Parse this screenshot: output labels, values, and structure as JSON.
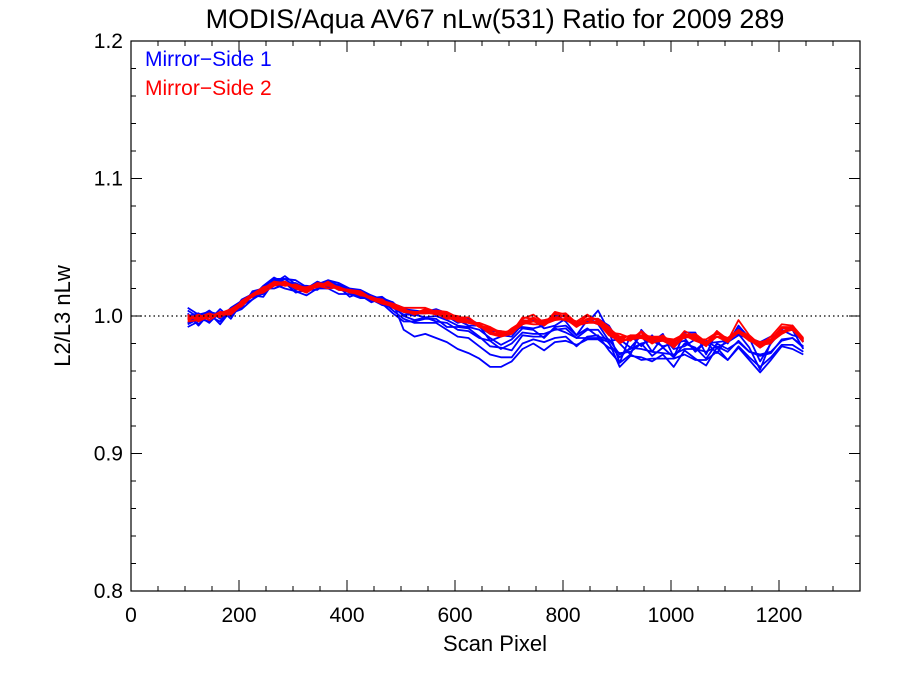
{
  "chart_data": {
    "type": "line",
    "title": "MODIS/Aqua AV67 nLw(531) Ratio for 2009 289",
    "xlabel": "Scan Pixel",
    "ylabel": "L2/L3 nLw",
    "xlim": [
      0,
      1350
    ],
    "ylim": [
      0.8,
      1.2
    ],
    "xticks": [
      0,
      200,
      400,
      600,
      800,
      1000,
      1200
    ],
    "xtick_labels": [
      "0",
      "200",
      "400",
      "600",
      "800",
      "1000",
      "1200"
    ],
    "x_minor_step": 50,
    "yticks": [
      0.8,
      0.9,
      1.0,
      1.1,
      1.2
    ],
    "ytick_labels": [
      "0.8",
      "0.9",
      "1.0",
      "1.1",
      "1.2"
    ],
    "y_minor_step": 0.02,
    "reference_line": 1.0,
    "legend_position": "top-left",
    "legend": [
      {
        "label": "Mirror−Side 1",
        "color": "#0000ff"
      },
      {
        "label": "Mirror−Side 2",
        "color": "#ff0000"
      }
    ],
    "x": [
      105,
      125,
      145,
      165,
      185,
      205,
      225,
      245,
      265,
      285,
      305,
      325,
      345,
      365,
      385,
      405,
      425,
      445,
      465,
      485,
      505,
      525,
      545,
      565,
      585,
      605,
      625,
      645,
      665,
      685,
      705,
      725,
      745,
      765,
      785,
      805,
      825,
      845,
      865,
      885,
      905,
      925,
      945,
      965,
      985,
      1005,
      1025,
      1045,
      1065,
      1085,
      1105,
      1125,
      1145,
      1165,
      1185,
      1205,
      1225,
      1245
    ],
    "base": [
      0.998,
      0.998,
      0.999,
      1.0,
      1.002,
      1.008,
      1.014,
      1.018,
      1.022,
      1.023,
      1.02,
      1.018,
      1.021,
      1.022,
      1.019,
      1.017,
      1.015,
      1.012,
      1.01,
      1.006,
      1.002,
      1.0,
      1.001,
      1.0,
      0.998,
      0.995,
      0.993,
      0.99,
      0.986,
      0.983,
      0.985,
      0.992,
      0.993,
      0.99,
      0.995,
      0.995,
      0.99,
      0.993,
      0.992,
      0.985,
      0.978,
      0.98,
      0.982,
      0.978,
      0.98,
      0.975,
      0.982,
      0.98,
      0.976,
      0.983,
      0.978,
      0.985,
      0.98,
      0.975,
      0.978,
      0.985,
      0.988,
      0.98
    ],
    "series": [
      {
        "group": 1,
        "color": "#0000ff",
        "offsets": [
          0.004,
          -0.005,
          0.003,
          -0.006,
          0.002,
          0.001,
          0.003,
          0.0,
          0.004,
          0.002,
          -0.001,
          0.002,
          0.001,
          0.003,
          0.001,
          0.0,
          -0.001,
          0.002,
          0.001,
          -0.002,
          -0.004,
          -0.005,
          -0.006,
          -0.005,
          -0.008,
          -0.01,
          -0.009,
          -0.012,
          -0.014,
          -0.013,
          -0.015,
          -0.012,
          -0.01,
          -0.009,
          -0.011,
          -0.01,
          -0.012,
          -0.008,
          -0.006,
          -0.01,
          -0.012,
          -0.008,
          -0.014,
          -0.009,
          -0.011,
          -0.006,
          -0.01,
          -0.012,
          -0.008,
          -0.009,
          -0.01,
          -0.007,
          -0.01,
          -0.012,
          -0.008,
          -0.006,
          -0.009,
          -0.006
        ]
      },
      {
        "group": 1,
        "color": "#0000ff",
        "offsets": [
          -0.003,
          0.002,
          -0.004,
          0.003,
          -0.002,
          0.0,
          -0.002,
          0.003,
          0.005,
          0.004,
          0.001,
          -0.001,
          0.002,
          0.001,
          0.0,
          0.002,
          0.001,
          -0.001,
          0.002,
          0.001,
          -0.002,
          -0.003,
          -0.002,
          -0.004,
          -0.003,
          -0.005,
          -0.004,
          -0.006,
          -0.004,
          -0.007,
          -0.005,
          -0.004,
          -0.006,
          -0.003,
          -0.005,
          -0.004,
          -0.006,
          -0.003,
          -0.002,
          -0.005,
          -0.008,
          -0.003,
          -0.006,
          -0.004,
          -0.007,
          -0.003,
          -0.006,
          -0.004,
          -0.002,
          -0.005,
          -0.004,
          -0.003,
          -0.006,
          -0.004,
          -0.005,
          -0.002,
          -0.004,
          -0.003
        ]
      },
      {
        "group": 1,
        "color": "#0000ff",
        "offsets": [
          0.006,
          0.001,
          0.005,
          -0.002,
          0.004,
          0.003,
          0.001,
          -0.002,
          0.002,
          0.006,
          0.003,
          0.001,
          -0.002,
          0.004,
          0.003,
          0.001,
          0.003,
          0.0,
          -0.002,
          0.003,
          0.004,
          0.002,
          0.001,
          0.003,
          0.002,
          0.0,
          0.004,
          0.002,
          0.001,
          0.003,
          0.0,
          0.002,
          0.004,
          0.001,
          -0.002,
          0.003,
          0.005,
          0.002,
          0.012,
          0.004,
          -0.012,
          0.006,
          -0.004,
          0.008,
          -0.003,
          0.007,
          0.002,
          -0.006,
          0.005,
          -0.01,
          0.006,
          0.002,
          -0.003,
          -0.014,
          0.003,
          0.005,
          -0.002,
          0.004
        ]
      },
      {
        "group": 1,
        "color": "#0000ff",
        "offsets": [
          -0.006,
          -0.002,
          0.001,
          -0.004,
          0.003,
          -0.002,
          0.004,
          0.002,
          -0.002,
          0.0,
          0.002,
          0.004,
          0.0,
          -0.002,
          0.002,
          -0.003,
          0.002,
          0.003,
          -0.001,
          -0.004,
          -0.006,
          -0.004,
          -0.003,
          -0.002,
          -0.006,
          -0.003,
          -0.002,
          -0.005,
          -0.008,
          -0.006,
          -0.01,
          -0.006,
          -0.008,
          -0.005,
          -0.004,
          -0.007,
          -0.006,
          -0.009,
          -0.008,
          -0.004,
          -0.015,
          -0.009,
          -0.012,
          -0.011,
          -0.008,
          -0.012,
          -0.007,
          -0.011,
          -0.012,
          -0.006,
          -0.01,
          -0.008,
          -0.012,
          -0.016,
          -0.01,
          -0.007,
          -0.012,
          -0.008
        ]
      },
      {
        "group": 1,
        "color": "#0000ff",
        "offsets": [
          0.002,
          0.004,
          -0.002,
          0.005,
          -0.004,
          0.002,
          0.0,
          0.004,
          0.006,
          0.001,
          0.004,
          0.002,
          0.004,
          0.0,
          0.004,
          0.002,
          0.0,
          -0.002,
          0.003,
          0.004,
          0.001,
          0.0,
          0.003,
          0.001,
          0.003,
          0.002,
          0.0,
          0.003,
          -0.004,
          0.002,
          0.004,
          0.0,
          -0.002,
          0.003,
          0.006,
          0.001,
          -0.004,
          0.004,
          0.002,
          -0.003,
          0.005,
          -0.003,
          0.004,
          -0.004,
          0.005,
          0.001,
          -0.004,
          0.003,
          0.004,
          -0.002,
          0.004,
          0.006,
          0.003,
          0.002,
          0.005,
          0.004,
          0.002,
          0.001
        ]
      },
      {
        "group": 1,
        "color": "#0000ff",
        "offsets": [
          0.001,
          -0.004,
          0.002,
          0.001,
          0.0,
          -0.003,
          -0.002,
          -0.001,
          0.001,
          -0.003,
          -0.002,
          -0.003,
          -0.001,
          -0.002,
          -0.003,
          -0.001,
          -0.002,
          0.001,
          -0.002,
          0.0,
          -0.001,
          0.001,
          -0.002,
          0.0,
          -0.001,
          -0.002,
          -0.001,
          0.0,
          -0.002,
          -0.004,
          -0.002,
          -0.001,
          -0.003,
          -0.006,
          -0.003,
          -0.002,
          -0.004,
          -0.002,
          -0.007,
          -0.002,
          -0.006,
          -0.004,
          -0.002,
          -0.007,
          -0.003,
          -0.005,
          -0.002,
          -0.003,
          -0.007,
          -0.003,
          -0.002,
          -0.004,
          -0.006,
          -0.003,
          -0.004,
          -0.003,
          -0.004,
          -0.002
        ]
      },
      {
        "group": 1,
        "color": "#0000ff",
        "offsets": [
          0.008,
          0.003,
          0.004,
          0.001,
          -0.001,
          0.004,
          0.002,
          0.003,
          0.002,
          0.004,
          0.006,
          0.003,
          0.002,
          0.004,
          0.005,
          0.003,
          0.004,
          0.003,
          0.002,
          0.004,
          -0.012,
          -0.015,
          -0.014,
          -0.016,
          -0.017,
          -0.019,
          -0.02,
          -0.021,
          -0.023,
          -0.02,
          -0.018,
          -0.016,
          -0.013,
          -0.015,
          -0.014,
          -0.013,
          -0.011,
          -0.01,
          -0.009,
          -0.008,
          -0.005,
          -0.006,
          -0.002,
          0.004,
          -0.002,
          0.005,
          0.0,
          -0.005,
          0.006,
          -0.006,
          0.003,
          0.001,
          0.004,
          -0.008,
          0.002,
          0.004,
          0.002,
          -0.004
        ]
      },
      {
        "group": 1,
        "color": "#0000ff",
        "offsets": [
          -0.004,
          0.0,
          -0.003,
          0.002,
          0.001,
          -0.001,
          0.001,
          -0.004,
          0.003,
          0.001,
          -0.003,
          0.001,
          0.003,
          -0.001,
          0.002,
          0.003,
          -0.002,
          0.001,
          0.004,
          0.002,
          0.003,
          0.004,
          0.002,
          0.005,
          0.004,
          0.002,
          0.005,
          0.004,
          0.003,
          0.006,
          0.002,
          0.005,
          0.003,
          0.007,
          0.002,
          0.006,
          0.004,
          0.003,
          0.006,
          0.008,
          0.002,
          -0.008,
          0.008,
          0.003,
          0.007,
          -0.005,
          0.006,
          0.008,
          -0.004,
          0.006,
          0.002,
          0.008,
          0.004,
          0.006,
          0.007,
          0.003,
          0.005,
          0.003
        ]
      },
      {
        "group": 2,
        "color": "#ff0000",
        "offsets": [
          0.002,
          0.001,
          0.003,
          -0.001,
          0.002,
          0.001,
          0.002,
          0.003,
          0.001,
          0.002,
          0.001,
          0.003,
          0.002,
          0.001,
          0.002,
          0.001,
          0.0,
          0.002,
          0.001,
          0.003,
          0.004,
          0.006,
          0.005,
          0.003,
          0.004,
          0.002,
          0.003,
          0.004,
          0.002,
          0.003,
          0.004,
          0.005,
          0.003,
          0.006,
          0.004,
          0.005,
          0.003,
          0.002,
          0.004,
          0.003,
          0.002,
          0.005,
          0.003,
          0.004,
          0.006,
          0.004,
          0.003,
          0.005,
          0.004,
          0.006,
          0.003,
          0.005,
          0.004,
          0.003,
          0.004,
          0.006,
          0.003,
          0.002
        ]
      },
      {
        "group": 2,
        "color": "#ff0000",
        "offsets": [
          -0.002,
          -0.001,
          0.0,
          0.001,
          -0.001,
          0.0,
          0.001,
          -0.001,
          0.0,
          0.001,
          0.0,
          -0.001,
          0.001,
          0.0,
          0.002,
          0.0,
          0.001,
          0.0,
          -0.001,
          0.001,
          0.002,
          0.001,
          0.003,
          0.002,
          0.0,
          0.003,
          0.002,
          0.004,
          0.003,
          0.002,
          0.006,
          0.004,
          0.003,
          0.007,
          0.004,
          0.002,
          0.003,
          0.005,
          0.006,
          0.003,
          0.009,
          0.004,
          0.002,
          0.006,
          0.003,
          0.007,
          0.002,
          0.006,
          0.004,
          0.002,
          0.006,
          0.003,
          0.005,
          0.004,
          0.002,
          0.006,
          0.004,
          0.003
        ]
      },
      {
        "group": 2,
        "color": "#ff0000",
        "offsets": [
          0.0,
          0.003,
          -0.002,
          0.002,
          0.001,
          0.002,
          0.0,
          0.002,
          0.003,
          0.0,
          0.002,
          0.001,
          0.0,
          0.003,
          0.001,
          0.002,
          0.001,
          0.001,
          0.002,
          0.0,
          0.001,
          0.002,
          0.004,
          0.003,
          0.002,
          0.004,
          0.006,
          0.003,
          0.005,
          0.004,
          0.003,
          0.007,
          0.005,
          0.004,
          0.008,
          0.006,
          0.004,
          0.007,
          0.005,
          0.004,
          0.006,
          0.002,
          0.007,
          0.005,
          0.004,
          0.008,
          0.005,
          0.003,
          0.007,
          0.005,
          0.004,
          0.012,
          0.006,
          0.004,
          0.007,
          0.009,
          0.005,
          0.003
        ]
      },
      {
        "group": 2,
        "color": "#ff0000",
        "offsets": [
          0.001,
          0.0,
          0.001,
          0.0,
          0.002,
          -0.001,
          0.001,
          0.002,
          0.0,
          0.001,
          0.002,
          0.0,
          0.001,
          0.002,
          0.0,
          0.001,
          0.002,
          0.0,
          0.001,
          0.002,
          0.001,
          0.002,
          0.001,
          0.002,
          0.003,
          0.001,
          0.002,
          0.003,
          0.001,
          0.002,
          0.002,
          0.003,
          0.001,
          0.004,
          0.003,
          0.002,
          0.004,
          0.002,
          0.003,
          0.001,
          0.004,
          0.003,
          0.002,
          0.003,
          0.002,
          0.003,
          0.004,
          0.002,
          0.003,
          0.002,
          0.004,
          0.003,
          0.002,
          0.004,
          0.003,
          0.002,
          0.003,
          0.001
        ]
      },
      {
        "group": 2,
        "color": "#ff0000",
        "offsets": [
          0.003,
          -0.002,
          0.001,
          0.002,
          0.003,
          0.002,
          0.0,
          0.001,
          0.002,
          -0.001,
          0.003,
          0.002,
          0.001,
          -0.002,
          0.002,
          0.0,
          0.002,
          0.001,
          -0.001,
          0.002,
          0.003,
          0.002,
          0.001,
          0.004,
          0.005,
          0.004,
          0.002,
          0.005,
          0.006,
          0.004,
          0.005,
          0.003,
          0.006,
          0.004,
          0.006,
          0.007,
          0.005,
          0.004,
          0.006,
          0.007,
          0.005,
          0.006,
          0.004,
          0.007,
          0.005,
          0.006,
          0.004,
          0.007,
          0.005,
          0.004,
          0.006,
          0.005,
          0.004,
          0.006,
          0.005,
          0.003,
          0.005,
          0.004
        ]
      },
      {
        "group": 2,
        "color": "#ff0000",
        "offsets": [
          -0.001,
          0.002,
          0.0,
          0.003,
          0.0,
          0.003,
          0.002,
          0.0,
          0.003,
          0.001,
          0.0,
          0.002,
          0.003,
          0.001,
          0.0,
          0.002,
          0.003,
          0.001,
          0.002,
          0.0,
          0.002,
          0.003,
          0.002,
          0.001,
          0.003,
          0.005,
          0.004,
          0.002,
          0.004,
          0.006,
          0.003,
          0.002,
          0.005,
          0.003,
          0.004,
          0.002,
          0.006,
          0.004,
          0.002,
          0.005,
          0.003,
          0.004,
          0.006,
          0.002,
          0.005,
          0.003,
          0.005,
          0.004,
          0.002,
          0.005,
          0.003,
          0.004,
          0.002,
          0.005,
          0.003,
          0.004,
          0.002,
          0.003
        ]
      },
      {
        "group": 2,
        "color": "#ff0000",
        "offsets": [
          0.002,
          0.0,
          0.002,
          0.001,
          0.0,
          0.002,
          0.001,
          0.002,
          0.001,
          0.002,
          0.0,
          0.001,
          0.002,
          0.001,
          0.002,
          0.001,
          0.002,
          0.001,
          0.002,
          0.001,
          0.001,
          0.003,
          0.002,
          0.004,
          0.002,
          0.003,
          0.004,
          0.002,
          0.006,
          0.005,
          0.004,
          0.006,
          0.008,
          0.005,
          0.007,
          0.004,
          0.006,
          0.008,
          0.004,
          0.006,
          0.007,
          0.005,
          0.003,
          0.006,
          0.004,
          0.005,
          0.007,
          0.005,
          0.003,
          0.006,
          0.005,
          0.004,
          0.006,
          0.004,
          0.005,
          0.007,
          0.004,
          0.002
        ]
      },
      {
        "group": 2,
        "color": "#ff0000",
        "offsets": [
          0.0,
          0.001,
          0.001,
          0.0,
          0.001,
          0.002,
          0.001,
          0.001,
          0.002,
          0.001,
          0.001,
          0.002,
          0.0,
          0.001,
          0.001,
          0.002,
          0.0,
          0.002,
          0.0,
          0.001,
          0.002,
          0.002,
          0.003,
          0.002,
          0.001,
          0.002,
          0.003,
          0.003,
          0.002,
          0.004,
          0.003,
          0.002,
          0.003,
          0.004,
          0.002,
          0.003,
          0.002,
          0.004,
          0.003,
          0.002,
          0.003,
          0.004,
          0.003,
          0.002,
          0.004,
          0.002,
          0.003,
          0.004,
          0.003,
          0.002,
          0.003,
          0.005,
          0.003,
          0.002,
          0.004,
          0.003,
          0.002,
          0.002
        ]
      }
    ]
  }
}
